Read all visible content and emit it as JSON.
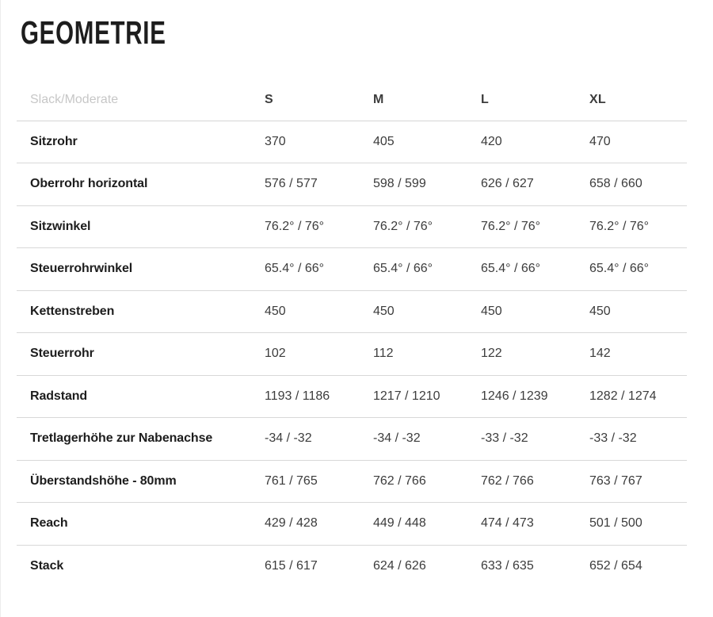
{
  "page": {
    "title": "GEOMETRIE"
  },
  "colors": {
    "title_text": "#1d1d1d",
    "row_label_text": "#1d1d1d",
    "value_text": "#3c3c3c",
    "variant_header_text": "#c7c7c7",
    "divider_line": "#d8d8d8",
    "background": "#ffffff"
  },
  "table": {
    "variant_label": "Slack/Moderate",
    "sizes": [
      "S",
      "M",
      "L",
      "XL"
    ],
    "rows": [
      {
        "label": "Sitzrohr",
        "values": [
          "370",
          "405",
          "420",
          "470"
        ]
      },
      {
        "label": "Oberrohr horizontal",
        "values": [
          "576 / 577",
          "598 / 599",
          "626 / 627",
          "658 / 660"
        ]
      },
      {
        "label": "Sitzwinkel",
        "values": [
          "76.2° / 76°",
          "76.2° / 76°",
          "76.2° / 76°",
          "76.2° / 76°"
        ]
      },
      {
        "label": "Steuerrohrwinkel",
        "values": [
          "65.4° / 66°",
          "65.4° / 66°",
          "65.4° / 66°",
          "65.4° / 66°"
        ]
      },
      {
        "label": "Kettenstreben",
        "values": [
          "450",
          "450",
          "450",
          "450"
        ]
      },
      {
        "label": "Steuerrohr",
        "values": [
          "102",
          "112",
          "122",
          "142"
        ]
      },
      {
        "label": "Radstand",
        "values": [
          "1193 / 1186",
          "1217 / 1210",
          "1246 / 1239",
          "1282 / 1274"
        ]
      },
      {
        "label": "Tretlagerhöhe zur Nabenachse",
        "values": [
          "-34 / -32",
          "-34 / -32",
          "-33 / -32",
          "-33 / -32"
        ]
      },
      {
        "label": "Überstandshöhe - 80mm",
        "values": [
          "761 / 765",
          "762 / 766",
          "762 / 766",
          "763 / 767"
        ]
      },
      {
        "label": "Reach",
        "values": [
          "429 / 428",
          "449 / 448",
          "474 / 473",
          "501 / 500"
        ]
      },
      {
        "label": "Stack",
        "values": [
          "615 / 617",
          "624 / 626",
          "633 / 635",
          "652 / 654"
        ]
      }
    ]
  }
}
